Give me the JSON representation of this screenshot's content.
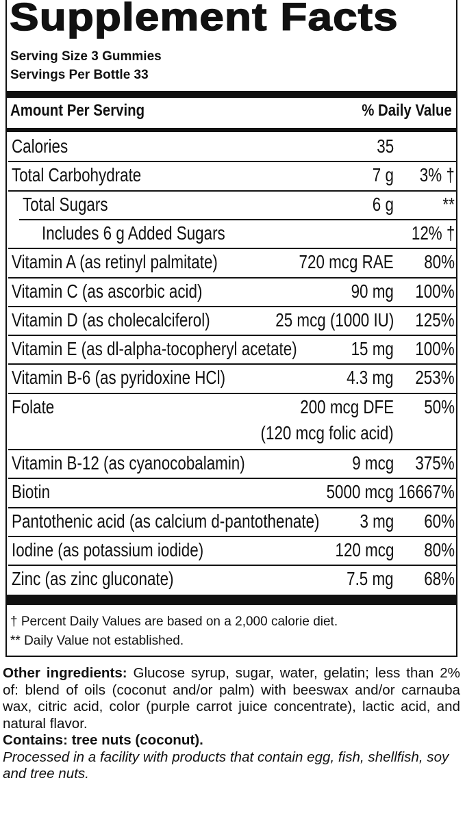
{
  "title": "Supplement Facts",
  "serving_size": "Serving Size 3 Gummies",
  "servings_per_container": "Servings Per Bottle 33",
  "table": {
    "header": {
      "amount": "Amount Per Serving",
      "daily_value": "% Daily Value"
    },
    "rows": [
      {
        "name": "Calories",
        "amount": "35"
      },
      {
        "name": "Total Carbohydrate",
        "amount": "7 g",
        "daily_value": "3% †"
      },
      {
        "name": "Total Sugars",
        "amount": "6 g",
        "daily_value": "**"
      },
      {
        "name": "Includes 6 g Added Sugars",
        "daily_value": "12% †"
      },
      {
        "name": "Vitamin A (as retinyl palmitate)",
        "amount": "720 mcg RAE",
        "daily_value": "80%"
      },
      {
        "name": "Vitamin C (as ascorbic acid)",
        "amount": "90 mg",
        "daily_value": "100%"
      },
      {
        "name": "Vitamin D (as cholecalciferol)",
        "amount": "25 mcg (1000 IU)",
        "daily_value": "125%"
      },
      {
        "name": "Vitamin E (as dl-alpha-tocopheryl acetate)",
        "amount": "15 mg",
        "daily_value": "100%"
      },
      {
        "name": "Vitamin B-6 (as pyridoxine HCl)",
        "amount": "4.3 mg",
        "daily_value": "253%"
      },
      {
        "name": "Folate",
        "amount": "200 mcg DFE",
        "amount_note": "(120 mcg folic acid)",
        "daily_value": "50%"
      },
      {
        "name": "Vitamin B-12 (as cyanocobalamin)",
        "amount": "9 mcg",
        "daily_value": "375%"
      },
      {
        "name": "Biotin",
        "amount": "5000 mcg",
        "daily_value": "16667%"
      },
      {
        "name": "Pantothenic acid (as calcium d-pantothenate)",
        "amount": "3 mg",
        "daily_value": "60%"
      },
      {
        "name": "Iodine (as potassium iodide)",
        "amount": "120 mcg",
        "daily_value": "80%"
      },
      {
        "name": "Zinc (as zinc gluconate)",
        "amount": "7.5 mg",
        "daily_value": "68%"
      }
    ]
  },
  "footnotes": [
    "† Percent Daily Values are based on a 2,000 calorie diet.",
    "** Daily Value not established."
  ],
  "ingredients": {
    "label": "Other ingredients:",
    "text": "Glucose syrup, sugar, water, gelatin; less than 2% of: blend of oils (coconut and/or palm) with beeswax and/or carnauba wax, citric acid, color (purple carrot juice concentrate), lactic acid, and natural flavor."
  },
  "contains": "Contains: tree nuts (coconut).",
  "facility_note": "Processed in a facility with products that contain egg, fish, shellfish, soy and tree nuts."
}
